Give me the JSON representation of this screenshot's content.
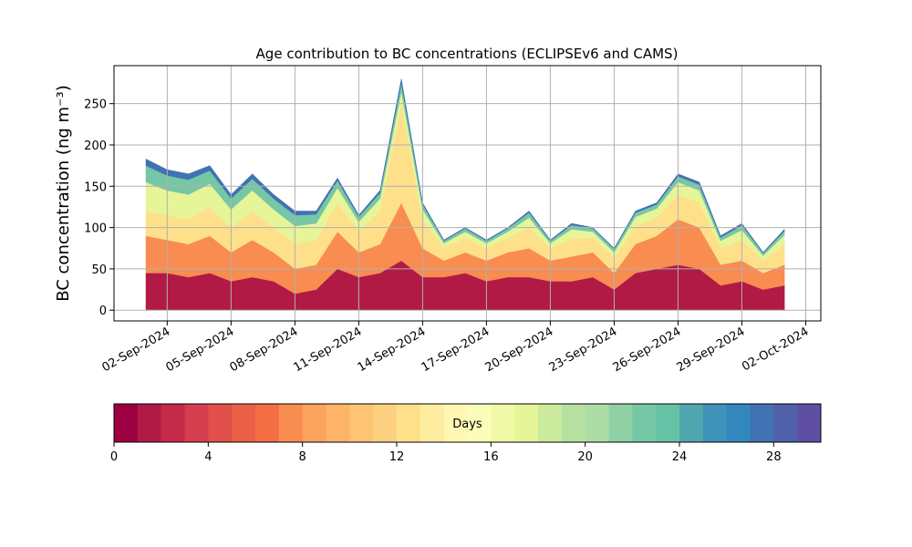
{
  "chart_data": {
    "type": "stacked_area",
    "title": "Age contribution to BC concentrations (ECLIPSEv6 and CAMS)",
    "ylabel": "BC concentration (ng m⁻³)",
    "x": [
      "2024-09-01",
      "2024-09-02",
      "2024-09-03",
      "2024-09-04",
      "2024-09-05",
      "2024-09-06",
      "2024-09-07",
      "2024-09-08",
      "2024-09-09",
      "2024-09-10",
      "2024-09-11",
      "2024-09-12",
      "2024-09-13",
      "2024-09-14",
      "2024-09-15",
      "2024-09-16",
      "2024-09-17",
      "2024-09-18",
      "2024-09-19",
      "2024-09-20",
      "2024-09-21",
      "2024-09-22",
      "2024-09-23",
      "2024-09-24",
      "2024-09-25",
      "2024-09-26",
      "2024-09-27",
      "2024-09-28",
      "2024-09-29",
      "2024-09-30",
      "2024-10-01"
    ],
    "series": [
      {
        "color": "#b11a45",
        "values": [
          45,
          45,
          40,
          45,
          35,
          40,
          35,
          20,
          25,
          50,
          40,
          45,
          60,
          40,
          40,
          45,
          35,
          40,
          40,
          35,
          35,
          40,
          25,
          45,
          50,
          55,
          50,
          30,
          35,
          25,
          30
        ]
      },
      {
        "color": "#f88c51",
        "values": [
          45,
          40,
          40,
          45,
          35,
          45,
          35,
          30,
          30,
          45,
          30,
          35,
          70,
          35,
          20,
          25,
          25,
          30,
          35,
          25,
          30,
          30,
          20,
          35,
          40,
          55,
          50,
          25,
          25,
          20,
          25
        ]
      },
      {
        "color": "#fee08b",
        "values": [
          30,
          30,
          30,
          35,
          30,
          35,
          30,
          30,
          30,
          35,
          25,
          40,
          120,
          35,
          15,
          18,
          15,
          18,
          25,
          15,
          22,
          18,
          18,
          22,
          22,
          30,
          30,
          20,
          25,
          15,
          25
        ]
      },
      {
        "color": "#e6f598",
        "values": [
          35,
          30,
          30,
          28,
          22,
          25,
          22,
          22,
          20,
          18,
          12,
          15,
          15,
          12,
          6,
          7,
          6,
          7,
          12,
          6,
          11,
          7,
          7,
          11,
          11,
          15,
          15,
          9,
          12,
          6,
          11
        ]
      },
      {
        "color": "#76c7a5",
        "values": [
          20,
          18,
          18,
          16,
          13,
          14,
          13,
          13,
          11,
          9,
          6,
          7,
          10,
          6,
          3,
          4,
          3,
          4,
          6,
          3,
          5,
          4,
          4,
          5,
          5,
          7,
          7,
          4,
          6,
          3,
          5
        ]
      },
      {
        "color": "#4172b3",
        "values": [
          8,
          7,
          7,
          6,
          5,
          6,
          5,
          5,
          4,
          3,
          2,
          3,
          5,
          2,
          1,
          1,
          1,
          1,
          2,
          1,
          2,
          1,
          1,
          2,
          2,
          3,
          3,
          2,
          2,
          1,
          2
        ]
      }
    ],
    "xlim": [
      "2024-08-30T12:00Z",
      "2024-10-02T17:00Z"
    ],
    "xticks": [
      {
        "value": "2024-09-02",
        "label": "02-Sep-2024"
      },
      {
        "value": "2024-09-05",
        "label": "05-Sep-2024"
      },
      {
        "value": "2024-09-08",
        "label": "08-Sep-2024"
      },
      {
        "value": "2024-09-11",
        "label": "11-Sep-2024"
      },
      {
        "value": "2024-09-14",
        "label": "14-Sep-2024"
      },
      {
        "value": "2024-09-17",
        "label": "17-Sep-2024"
      },
      {
        "value": "2024-09-20",
        "label": "20-Sep-2024"
      },
      {
        "value": "2024-09-23",
        "label": "23-Sep-2024"
      },
      {
        "value": "2024-09-26",
        "label": "26-Sep-2024"
      },
      {
        "value": "2024-09-29",
        "label": "29-Sep-2024"
      },
      {
        "value": "2024-10-02",
        "label": "02-Oct-2024"
      }
    ],
    "ylim": [
      -13,
      296
    ],
    "yticks": [
      0,
      50,
      100,
      150,
      200,
      250
    ],
    "grid": true,
    "colorbar": {
      "label": "Days",
      "lim": [
        0,
        30
      ],
      "ticks": [
        0,
        4,
        8,
        12,
        16,
        20,
        24,
        28
      ],
      "colors": [
        "#9e0142",
        "#b11a45",
        "#c52a48",
        "#d53e4f",
        "#e04f4a",
        "#ea5f46",
        "#f46d43",
        "#f88c51",
        "#fca35d",
        "#fdb466",
        "#fdc474",
        "#fdd181",
        "#fee08b",
        "#feeda0",
        "#fff7b2",
        "#fbfdba",
        "#f0f9a8",
        "#e6f598",
        "#cdeb9d",
        "#b6e1a1",
        "#abdda4",
        "#8fd1a5",
        "#76c7a5",
        "#66c2a5",
        "#52a7af",
        "#3f92b9",
        "#3288bd",
        "#4172b3",
        "#5060a9",
        "#5e4fa2"
      ]
    }
  }
}
